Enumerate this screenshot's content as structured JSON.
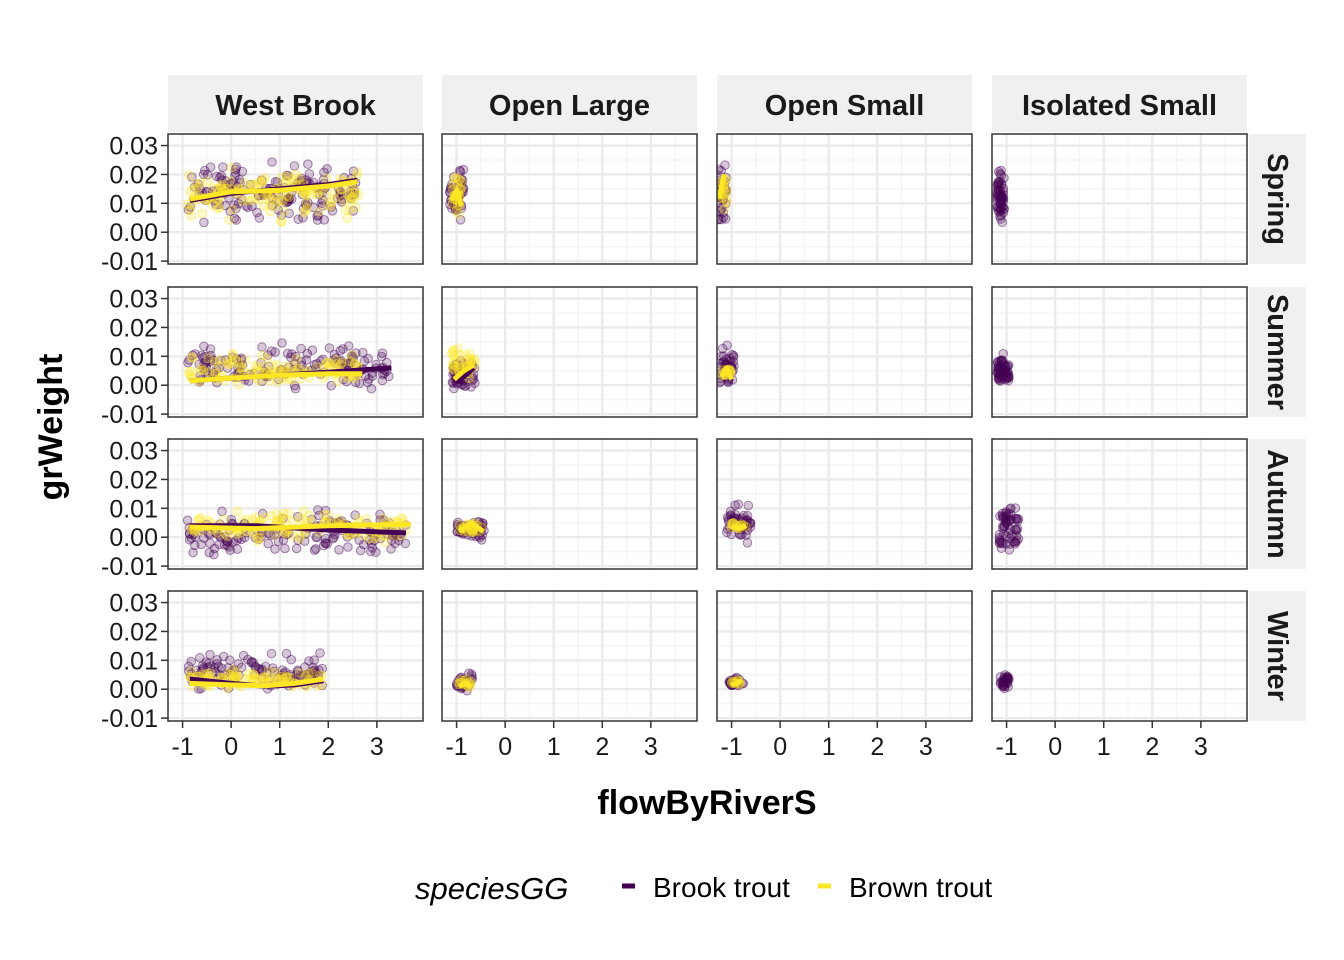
{
  "chart_data": {
    "type": "scatter",
    "xlabel": "flowByRiverS",
    "ylabel": "grWeight",
    "xlim": [
      -1.3,
      3.95
    ],
    "ylim": [
      -0.011,
      0.034
    ],
    "x_ticks": [
      -1,
      0,
      1,
      2,
      3
    ],
    "x_tick_labels": [
      "-1",
      "0",
      "1",
      "2",
      "3"
    ],
    "y_ticks": [
      -0.01,
      0.0,
      0.01,
      0.02,
      0.03
    ],
    "y_tick_labels": [
      "-0.01",
      "0.00",
      "0.01",
      "0.02",
      "0.03"
    ],
    "facet_cols": [
      "West Brook",
      "Open Large",
      "Open Small",
      "Isolated Small"
    ],
    "facet_rows": [
      "Spring",
      "Summer",
      "Autumn",
      "Winter"
    ],
    "grid": true,
    "legend": {
      "title": "speciesGG",
      "position": "bottom",
      "entries": [
        {
          "name": "Brook trout",
          "color": "#440154"
        },
        {
          "name": "Brown trout",
          "color": "#FDE725"
        }
      ]
    },
    "series_colors": {
      "Brook trout": "#440154",
      "Brown trout": "#FDE725"
    },
    "panels": [
      {
        "row": 0,
        "col": 0,
        "clouds": [
          {
            "species": "Brook trout",
            "x": [
              -0.9,
              2.6
            ],
            "y": [
              0.0,
              0.027
            ],
            "n": 160
          },
          {
            "species": "Brown trout",
            "x": [
              -0.9,
              2.7
            ],
            "y": [
              0.002,
              0.025
            ],
            "n": 140
          }
        ],
        "fits": [
          {
            "species": "Brook trout",
            "x": [
              -0.85,
              0.0,
              1.0,
              2.0,
              2.6
            ],
            "y": [
              0.011,
              0.0135,
              0.015,
              0.0165,
              0.018
            ]
          },
          {
            "species": "Brown trout",
            "x": [
              -0.85,
              0.0,
              1.0,
              2.0,
              2.6
            ],
            "y": [
              0.0115,
              0.014,
              0.0145,
              0.016,
              0.0175
            ]
          }
        ]
      },
      {
        "row": 0,
        "col": 1,
        "clouds": [
          {
            "species": "Brook trout",
            "x": [
              -1.15,
              -0.85
            ],
            "y": [
              0.002,
              0.026
            ],
            "n": 45
          },
          {
            "species": "Brown trout",
            "x": [
              -1.1,
              -0.9
            ],
            "y": [
              0.004,
              0.022
            ],
            "n": 30
          }
        ],
        "fits": [
          {
            "species": "Brown trout",
            "x": [
              -1.1,
              -1.0,
              -0.9
            ],
            "y": [
              0.011,
              0.0145,
              0.009
            ]
          }
        ]
      },
      {
        "row": 0,
        "col": 2,
        "clouds": [
          {
            "species": "Brook trout",
            "x": [
              -1.3,
              -1.1
            ],
            "y": [
              0.001,
              0.026
            ],
            "n": 40
          },
          {
            "species": "Brown trout",
            "x": [
              -1.28,
              -1.1
            ],
            "y": [
              0.005,
              0.024
            ],
            "n": 20
          }
        ],
        "fits": [
          {
            "species": "Brown trout",
            "x": [
              -1.25,
              -1.15
            ],
            "y": [
              0.012,
              0.02
            ]
          }
        ]
      },
      {
        "row": 0,
        "col": 3,
        "clouds": [
          {
            "species": "Brook trout",
            "x": [
              -1.2,
              -1.05
            ],
            "y": [
              0.0,
              0.024
            ],
            "n": 60
          }
        ],
        "fits": []
      },
      {
        "row": 1,
        "col": 0,
        "clouds": [
          {
            "species": "Brook trout",
            "x": [
              -0.9,
              3.3
            ],
            "y": [
              -0.004,
              0.016
            ],
            "n": 150
          },
          {
            "species": "Brown trout",
            "x": [
              -0.9,
              2.7
            ],
            "y": [
              -0.003,
              0.013
            ],
            "n": 110
          }
        ],
        "fits": [
          {
            "species": "Brook trout",
            "x": [
              -0.85,
              0.0,
              1.0,
              2.0,
              3.3
            ],
            "y": [
              0.0015,
              0.0025,
              0.0035,
              0.0045,
              0.006
            ]
          },
          {
            "species": "Brown trout",
            "x": [
              -0.85,
              0.0,
              1.0,
              2.0,
              2.7
            ],
            "y": [
              0.0015,
              0.0025,
              0.0035,
              0.004,
              0.004
            ]
          }
        ]
      },
      {
        "row": 1,
        "col": 1,
        "clouds": [
          {
            "species": "Brook trout",
            "x": [
              -1.1,
              -0.6
            ],
            "y": [
              -0.004,
              0.011
            ],
            "n": 50
          },
          {
            "species": "Brown trout",
            "x": [
              -1.1,
              -0.6
            ],
            "y": [
              0.0,
              0.015
            ],
            "n": 35
          }
        ],
        "fits": [
          {
            "species": "Brook trout",
            "x": [
              -1.05,
              -0.85,
              -0.65
            ],
            "y": [
              0.001,
              0.003,
              0.006
            ]
          },
          {
            "species": "Brown trout",
            "x": [
              -1.05,
              -0.85,
              -0.65
            ],
            "y": [
              0.002,
              0.005,
              0.007
            ]
          }
        ]
      },
      {
        "row": 1,
        "col": 2,
        "clouds": [
          {
            "species": "Brook trout",
            "x": [
              -1.25,
              -0.95
            ],
            "y": [
              -0.003,
              0.015
            ],
            "n": 40
          },
          {
            "species": "Brown trout",
            "x": [
              -1.2,
              -1.0
            ],
            "y": [
              0.001,
              0.008
            ],
            "n": 15
          }
        ],
        "fits": [
          {
            "species": "Brown trout",
            "x": [
              -1.2,
              -1.1,
              -1.0
            ],
            "y": [
              0.003,
              0.006,
              0.002
            ]
          }
        ]
      },
      {
        "row": 1,
        "col": 3,
        "clouds": [
          {
            "species": "Brook trout",
            "x": [
              -1.2,
              -0.95
            ],
            "y": [
              -0.002,
              0.012
            ],
            "n": 60
          }
        ],
        "fits": []
      },
      {
        "row": 2,
        "col": 0,
        "clouds": [
          {
            "species": "Brook trout",
            "x": [
              -0.9,
              3.6
            ],
            "y": [
              -0.009,
              0.012
            ],
            "n": 150
          },
          {
            "species": "Brown trout",
            "x": [
              -0.9,
              3.7
            ],
            "y": [
              -0.004,
              0.011
            ],
            "n": 130
          }
        ],
        "fits": [
          {
            "species": "Brook trout",
            "x": [
              -0.85,
              0.5,
              2.0,
              3.6
            ],
            "y": [
              0.004,
              0.004,
              0.0025,
              0.0015
            ]
          },
          {
            "species": "Brown trout",
            "x": [
              -0.85,
              0.5,
              2.0,
              3.7
            ],
            "y": [
              0.0035,
              0.003,
              0.004,
              0.0045
            ]
          }
        ]
      },
      {
        "row": 2,
        "col": 1,
        "clouds": [
          {
            "species": "Brook trout",
            "x": [
              -1.0,
              -0.4
            ],
            "y": [
              -0.002,
              0.008
            ],
            "n": 50
          },
          {
            "species": "Brown trout",
            "x": [
              -0.95,
              -0.45
            ],
            "y": [
              0.0,
              0.006
            ],
            "n": 25
          }
        ],
        "fits": [
          {
            "species": "Brown trout",
            "x": [
              -0.95,
              -0.7,
              -0.45
            ],
            "y": [
              0.002,
              0.005,
              0.002
            ]
          }
        ]
      },
      {
        "row": 2,
        "col": 2,
        "clouds": [
          {
            "species": "Brook trout",
            "x": [
              -1.1,
              -0.6
            ],
            "y": [
              -0.003,
              0.013
            ],
            "n": 50
          },
          {
            "species": "Brown trout",
            "x": [
              -1.0,
              -0.7
            ],
            "y": [
              0.002,
              0.006
            ],
            "n": 15
          }
        ],
        "fits": [
          {
            "species": "Brown trout",
            "x": [
              -1.0,
              -0.85,
              -0.7
            ],
            "y": [
              0.0035,
              0.003,
              0.004
            ]
          }
        ]
      },
      {
        "row": 2,
        "col": 3,
        "clouds": [
          {
            "species": "Brook trout",
            "x": [
              -1.15,
              -0.75
            ],
            "y": [
              -0.009,
              0.016
            ],
            "n": 60
          }
        ],
        "fits": []
      },
      {
        "row": 3,
        "col": 0,
        "clouds": [
          {
            "species": "Brook trout",
            "x": [
              -0.9,
              1.9
            ],
            "y": [
              -0.002,
              0.014
            ],
            "n": 110
          },
          {
            "species": "Brown trout",
            "x": [
              -0.9,
              1.9
            ],
            "y": [
              -0.001,
              0.008
            ],
            "n": 90
          }
        ],
        "fits": [
          {
            "species": "Brook trout",
            "x": [
              -0.85,
              0.0,
              0.7,
              1.3,
              1.9
            ],
            "y": [
              0.0035,
              0.002,
              0.001,
              0.0015,
              0.003
            ]
          },
          {
            "species": "Brown trout",
            "x": [
              -0.85,
              0.0,
              0.7,
              1.3,
              1.9
            ],
            "y": [
              0.002,
              0.0015,
              0.0012,
              0.002,
              0.0035
            ]
          }
        ]
      },
      {
        "row": 3,
        "col": 1,
        "clouds": [
          {
            "species": "Brook trout",
            "x": [
              -1.0,
              -0.65
            ],
            "y": [
              -0.001,
              0.007
            ],
            "n": 30
          },
          {
            "species": "Brown trout",
            "x": [
              -0.95,
              -0.7
            ],
            "y": [
              0.0,
              0.004
            ],
            "n": 15
          }
        ],
        "fits": [
          {
            "species": "Brown trout",
            "x": [
              -0.95,
              -0.8,
              -0.7
            ],
            "y": [
              0.001,
              0.002,
              0.001
            ]
          }
        ]
      },
      {
        "row": 3,
        "col": 2,
        "clouds": [
          {
            "species": "Brook trout",
            "x": [
              -1.05,
              -0.75
            ],
            "y": [
              0.0,
              0.005
            ],
            "n": 25
          },
          {
            "species": "Brown trout",
            "x": [
              -1.0,
              -0.8
            ],
            "y": [
              0.001,
              0.004
            ],
            "n": 10
          }
        ],
        "fits": [
          {
            "species": "Brown trout",
            "x": [
              -1.0,
              -0.9,
              -0.8
            ],
            "y": [
              0.0015,
              0.002,
              0.003
            ]
          }
        ]
      },
      {
        "row": 3,
        "col": 3,
        "clouds": [
          {
            "species": "Brook trout",
            "x": [
              -1.15,
              -0.95
            ],
            "y": [
              -0.001,
              0.007
            ],
            "n": 30
          }
        ],
        "fits": []
      }
    ]
  }
}
